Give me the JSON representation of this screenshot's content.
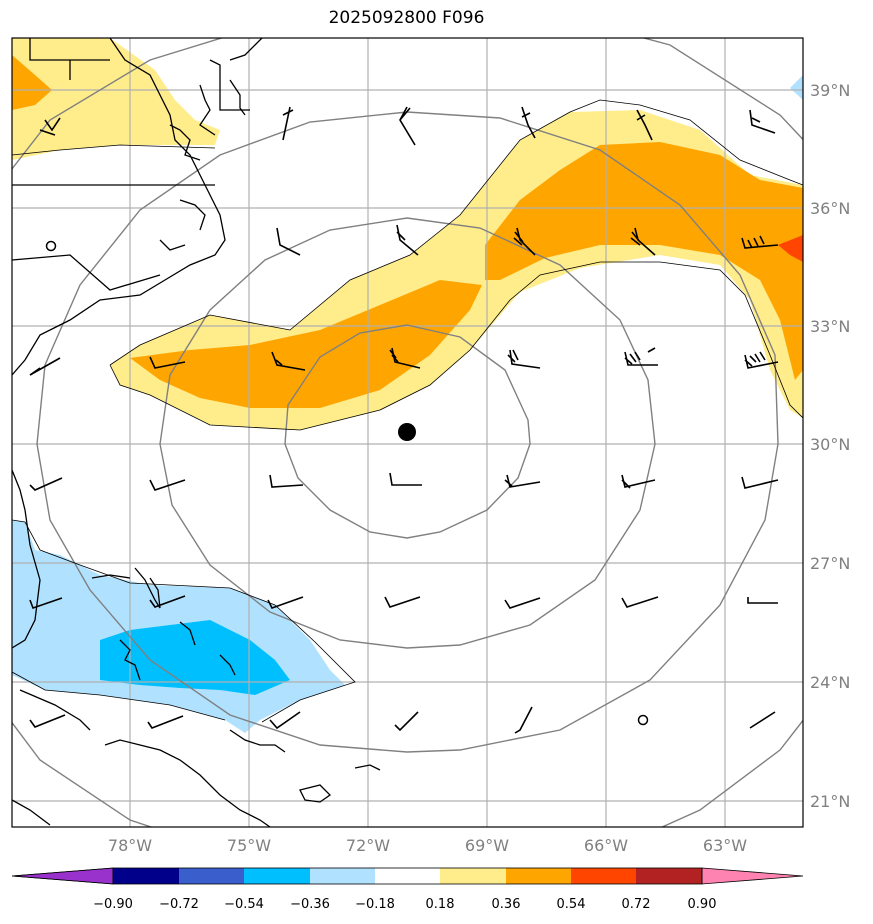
{
  "title": "2025092800 F096",
  "map": {
    "lon_range": [
      -81,
      -61
    ],
    "lat_range": [
      20.3,
      40.3
    ],
    "lon_labels": [
      "78°W",
      "75°W",
      "72°W",
      "69°W",
      "66°W",
      "63°W"
    ],
    "lat_labels": [
      "39°N",
      "36°N",
      "33°N",
      "30°N",
      "27°N",
      "24°N",
      "21°N"
    ],
    "storm_center": {
      "lon": -71,
      "lat": 30.3
    },
    "range_rings": 4
  },
  "colorbar": {
    "labels": [
      "−0.90",
      "−0.72",
      "−0.54",
      "−0.36",
      "−0.18",
      "0.18",
      "0.36",
      "0.54",
      "0.72",
      "0.90"
    ],
    "colors": [
      "#9932cc",
      "#00008b",
      "#3a5fcd",
      "#00bfff",
      "#b0e2ff",
      "#ffffff",
      "#ffec8b",
      "#ffa500",
      "#ff4500",
      "#b22222",
      "#ff83b0"
    ]
  },
  "legend_colors": {
    "light_yellow": "#ffec8b",
    "orange": "#ffa500",
    "orange_red": "#ff4500",
    "light_blue": "#b0e2ff",
    "deep_sky_blue": "#00bfff"
  }
}
